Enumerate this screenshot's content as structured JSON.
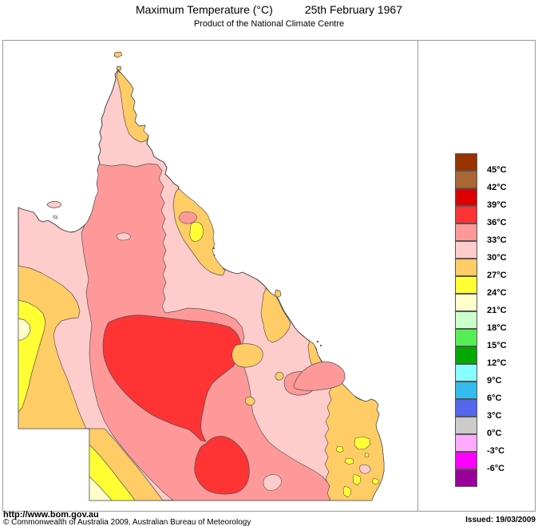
{
  "header": {
    "title": "Maximum Temperature (°C)",
    "date": "25th February 1967",
    "subtitle": "Product of the National Climate Centre"
  },
  "footer": {
    "url": "http://www.bom.gov.au",
    "copyright": "© Commonwealth of Australia 2009, Australian Bureau of Meteorology",
    "issued": "Issued: 19/03/2009"
  },
  "legend": {
    "entries": [
      {
        "color": "#993300",
        "label": "45°C"
      },
      {
        "color": "#AA6633",
        "label": "42°C"
      },
      {
        "color": "#DD0000",
        "label": "39°C"
      },
      {
        "color": "#FF3333",
        "label": "36°C"
      },
      {
        "color": "#FF9999",
        "label": "33°C"
      },
      {
        "color": "#FFCCCC",
        "label": "30°C"
      },
      {
        "color": "#FFCC66",
        "label": "27°C"
      },
      {
        "color": "#FFFF33",
        "label": "24°C"
      },
      {
        "color": "#FFFFCC",
        "label": "21°C"
      },
      {
        "color": "#CCFFCC",
        "label": "18°C"
      },
      {
        "color": "#55EE55",
        "label": "15°C"
      },
      {
        "color": "#00AA00",
        "label": "12°C"
      },
      {
        "color": "#88FFFF",
        "label": "9°C"
      },
      {
        "color": "#33BBEE",
        "label": "6°C"
      },
      {
        "color": "#5566EE",
        "label": "3°C"
      },
      {
        "color": "#CCCCCC",
        "label": "0°C"
      },
      {
        "color": "#FFAAFF",
        "label": "-3°C"
      },
      {
        "color": "#FF00FF",
        "label": "-6°C"
      },
      {
        "color": "#990099",
        "label": null
      }
    ]
  },
  "map": {
    "region": "Queensland",
    "outline_color": "#333333",
    "bands": {
      "t36_39": "#FF3333",
      "t33_36": "#FF9999",
      "t30_33": "#FFCCCC",
      "t27_30": "#FFCC66",
      "t24_27": "#FFFF33",
      "t21_24": "#FFFFCC"
    }
  }
}
